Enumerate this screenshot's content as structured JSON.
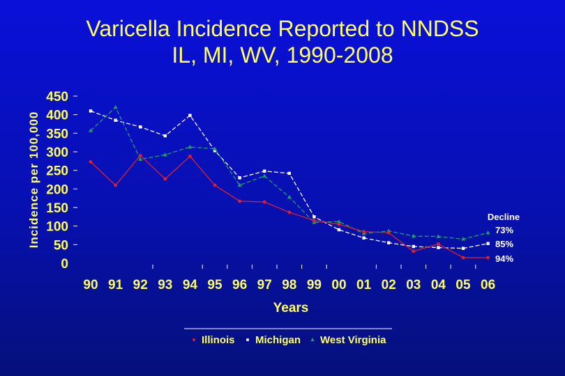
{
  "chart_data": {
    "type": "line",
    "title_line1": "Varicella Incidence Reported to NNDSS",
    "title_line2": "IL, MI, WV, 1990-2008",
    "xlabel": "Years",
    "ylabel": "Incidence per 100,000",
    "ylim": [
      0,
      450
    ],
    "yticks": [
      0,
      50,
      100,
      150,
      200,
      250,
      300,
      350,
      400,
      450
    ],
    "categories": [
      "90",
      "91",
      "92",
      "93",
      "94",
      "95",
      "96",
      "97",
      "98",
      "99",
      "00",
      "01",
      "02",
      "03",
      "04",
      "05",
      "06"
    ],
    "series": [
      {
        "name": "Illinois",
        "color": "#e0202a",
        "values": [
          273,
          210,
          290,
          227,
          288,
          210,
          167,
          165,
          137,
          115,
          105,
          85,
          82,
          32,
          52,
          15,
          15
        ]
      },
      {
        "name": "Michigan",
        "color": "#ffffff",
        "values": [
          410,
          385,
          367,
          343,
          398,
          303,
          230,
          248,
          242,
          125,
          90,
          68,
          55,
          45,
          42,
          40,
          53
        ]
      },
      {
        "name": "West Virginia",
        "color": "#1fa060",
        "values": [
          357,
          420,
          280,
          292,
          313,
          308,
          210,
          235,
          178,
          110,
          112,
          80,
          87,
          73,
          72,
          65,
          82
        ]
      }
    ],
    "decline": {
      "label": "Decline",
      "values": [
        "73%",
        "85%",
        "94%"
      ]
    },
    "legend_placement": "bottom",
    "grid": false
  }
}
